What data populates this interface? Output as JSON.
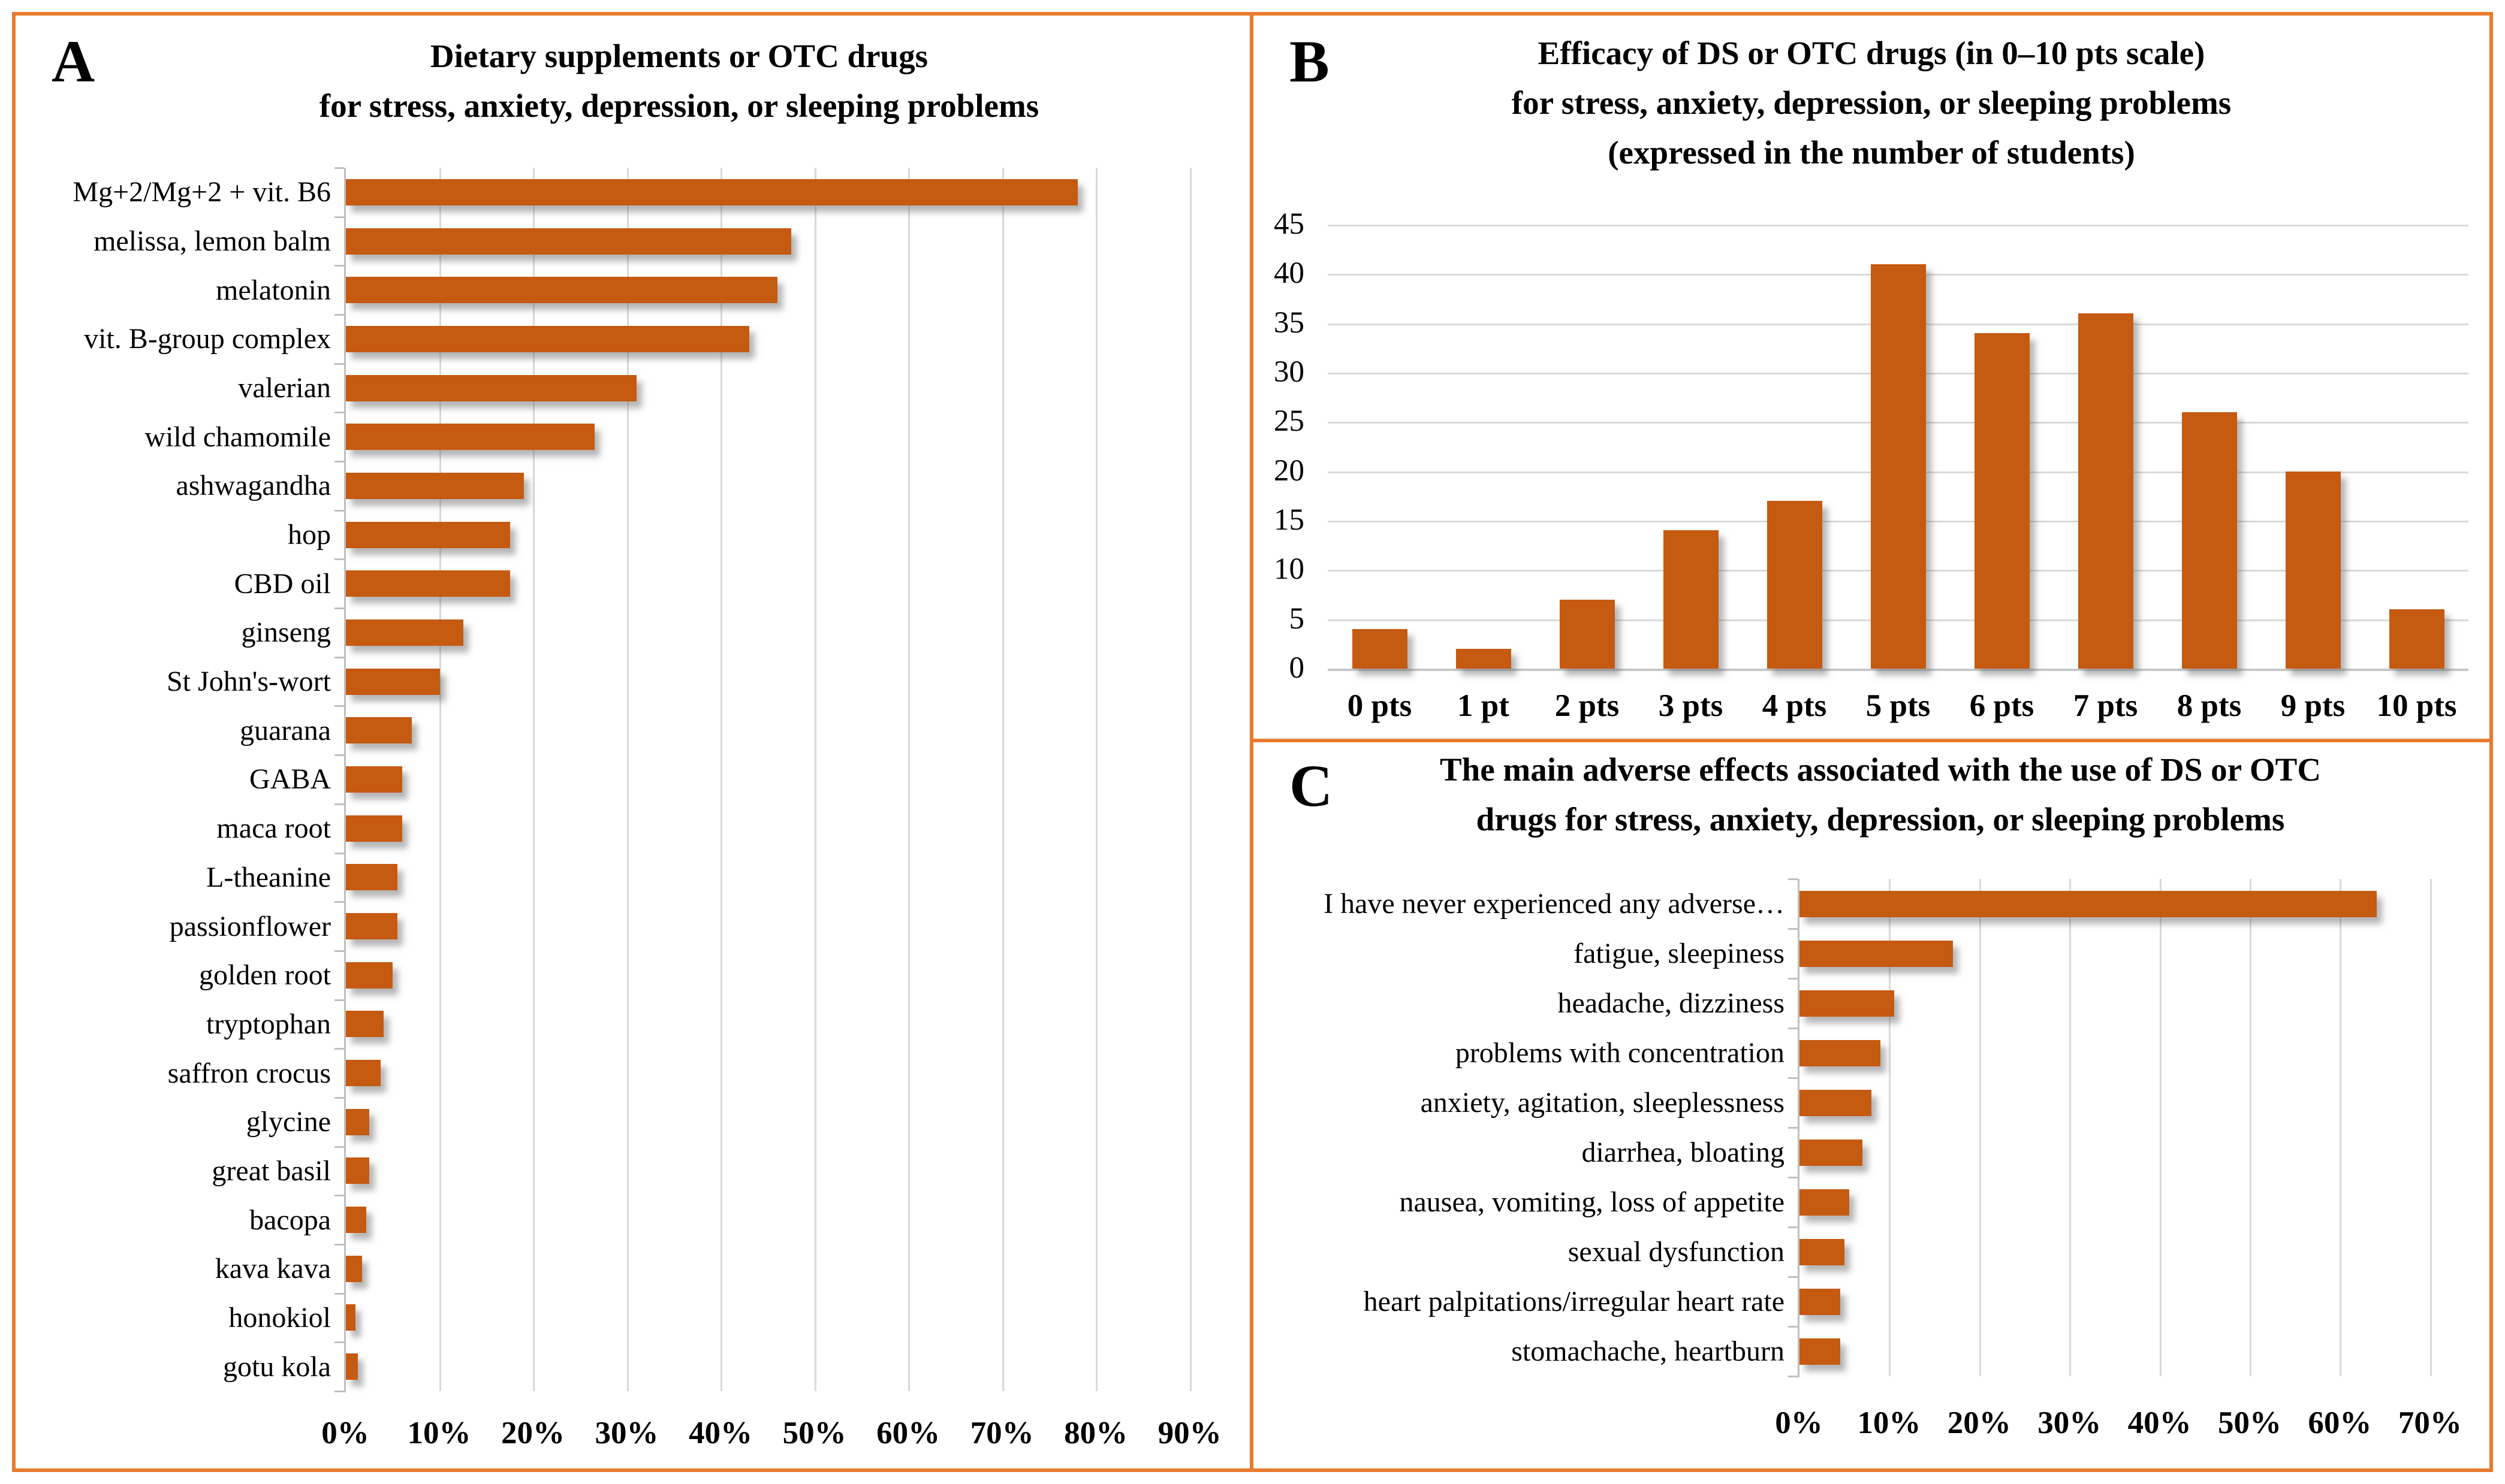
{
  "colors": {
    "bar": "#C55A11",
    "panel_border": "#E87B2D",
    "gridline": "#D9D9D9",
    "axis": "#C0C0C0",
    "baseline": "#C8C8C8",
    "text": "#000000"
  },
  "panels": {
    "a": {
      "letter": "A",
      "title_lines": [
        "Dietary supplements or OTC drugs",
        "for stress, anxiety, depression, or sleeping problems"
      ]
    },
    "b": {
      "letter": "B",
      "title_lines": [
        "Efficacy of DS or OTC drugs (in 0–10 pts scale)",
        "for stress, anxiety, depression, or sleeping problems",
        "(expressed in the number of students)"
      ]
    },
    "c": {
      "letter": "C",
      "title_lines": [
        "The main adverse effects associated with the use of DS or OTC",
        "drugs for stress, anxiety, depression, or sleeping problems"
      ]
    }
  },
  "chart_data": [
    {
      "panel": "A",
      "type": "bar",
      "orientation": "horizontal",
      "title": "Dietary supplements or OTC drugs for stress, anxiety, depression, or sleeping problems",
      "categories": [
        "Mg+2/Mg+2 + vit. B6",
        "melissa, lemon balm",
        "melatonin",
        "vit. B-group complex",
        "valerian",
        "wild chamomile",
        "ashwagandha",
        "hop",
        "CBD oil",
        "ginseng",
        "St John's-wort",
        "guarana",
        "GABA",
        "maca root",
        "L-theanine",
        "passionflower",
        "golden root",
        "tryptophan",
        "saffron crocus",
        "glycine",
        "great basil",
        "bacopa",
        "kava kava",
        "honokiol",
        "gotu kola"
      ],
      "values_percent": [
        78,
        47.5,
        46,
        43,
        31,
        26.5,
        19,
        17.5,
        17.5,
        12.5,
        10,
        7,
        6,
        6,
        5.5,
        5.5,
        5,
        4,
        3.7,
        2.5,
        2.5,
        2.2,
        1.7,
        1,
        1.3
      ],
      "x_tick_labels": [
        "0%",
        "10%",
        "20%",
        "30%",
        "40%",
        "50%",
        "60%",
        "70%",
        "80%",
        "90%"
      ],
      "x_tick_values": [
        0,
        10,
        20,
        30,
        40,
        50,
        60,
        70,
        80,
        90
      ],
      "xlim": [
        0,
        90
      ],
      "grid": true,
      "legend": null
    },
    {
      "panel": "B",
      "type": "bar",
      "orientation": "vertical",
      "title": "Efficacy of DS or OTC drugs (in 0–10 pts scale) for stress, anxiety, depression, or sleeping problems (expressed in the number of students)",
      "categories": [
        "0 pts",
        "1 pt",
        "2 pts",
        "3 pts",
        "4 pts",
        "5 pts",
        "6 pts",
        "7 pts",
        "8 pts",
        "9 pts",
        "10 pts"
      ],
      "values": [
        4,
        2,
        7,
        14,
        17,
        41,
        34,
        36,
        26,
        20,
        6
      ],
      "ylabel": "number of students",
      "y_tick_values": [
        0,
        5,
        10,
        15,
        20,
        25,
        30,
        35,
        40,
        45
      ],
      "ylim": [
        0,
        45
      ],
      "grid": true,
      "legend": null
    },
    {
      "panel": "C",
      "type": "bar",
      "orientation": "horizontal",
      "title": "The main adverse effects associated with the use of DS or OTC drugs for stress, anxiety, depression, or sleeping problems",
      "categories": [
        "I have never experienced any adverse…",
        "fatigue, sleepiness",
        "headache, dizziness",
        "problems with concentration",
        "anxiety, agitation, sleeplessness",
        "diarrhea, bloating",
        "nausea, vomiting, loss of appetite",
        "sexual dysfunction",
        "heart palpitations/irregular heart rate",
        "stomachache, heartburn"
      ],
      "values_percent": [
        64,
        17,
        10.5,
        9,
        8,
        7,
        5.5,
        5,
        4.5,
        4.5
      ],
      "x_tick_labels": [
        "0%",
        "10%",
        "20%",
        "30%",
        "40%",
        "50%",
        "60%",
        "70%"
      ],
      "x_tick_values": [
        0,
        10,
        20,
        30,
        40,
        50,
        60,
        70
      ],
      "xlim": [
        0,
        70
      ],
      "grid": true,
      "legend": null
    }
  ]
}
